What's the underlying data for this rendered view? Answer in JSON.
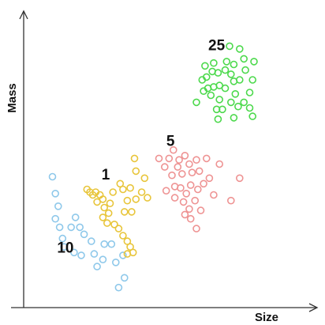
{
  "chart_data": {
    "type": "scatter",
    "title": "",
    "xlabel": "Size",
    "ylabel": "Mass",
    "xlim": [
      0,
      100
    ],
    "ylim": [
      0,
      100
    ],
    "grid": false,
    "legend": "none",
    "series": [
      {
        "label": "10",
        "color": "#8ec8ea",
        "points": [
          [
            10.0,
            45.5
          ],
          [
            11.0,
            39.5
          ],
          [
            12.0,
            35.0
          ],
          [
            11.0,
            30.5
          ],
          [
            12.5,
            27.5
          ],
          [
            13.5,
            23.5
          ],
          [
            14.0,
            20.5
          ],
          [
            16.5,
            27.5
          ],
          [
            18.0,
            31.0
          ],
          [
            19.5,
            27.5
          ],
          [
            21.0,
            25.0
          ],
          [
            17.5,
            18.5
          ],
          [
            20.0,
            17.5
          ],
          [
            23.5,
            22.5
          ],
          [
            24.5,
            18.0
          ],
          [
            25.5,
            13.5
          ],
          [
            27.5,
            16.0
          ],
          [
            28.0,
            21.5
          ],
          [
            30.5,
            21.5
          ],
          [
            32.0,
            15.0
          ],
          [
            34.5,
            17.5
          ],
          [
            35.0,
            9.5
          ],
          [
            33.0,
            6.0
          ]
        ]
      },
      {
        "label": "1",
        "color": "#e8c53a",
        "points": [
          [
            22.0,
            41.0
          ],
          [
            23.0,
            40.0
          ],
          [
            24.0,
            39.0
          ],
          [
            25.0,
            40.0
          ],
          [
            26.5,
            39.0
          ],
          [
            25.5,
            36.5
          ],
          [
            27.5,
            37.5
          ],
          [
            28.0,
            34.5
          ],
          [
            27.5,
            31.0
          ],
          [
            29.5,
            32.5
          ],
          [
            30.0,
            36.0
          ],
          [
            31.0,
            40.0
          ],
          [
            29.0,
            29.0
          ],
          [
            31.5,
            28.5
          ],
          [
            33.0,
            27.0
          ],
          [
            34.5,
            24.5
          ],
          [
            36.0,
            22.5
          ],
          [
            37.0,
            20.5
          ],
          [
            38.0,
            18.5
          ],
          [
            36.0,
            18.0
          ],
          [
            35.0,
            33.0
          ],
          [
            37.5,
            33.0
          ],
          [
            36.0,
            37.0
          ],
          [
            34.5,
            41.0
          ],
          [
            37.0,
            41.5
          ],
          [
            39.0,
            37.5
          ],
          [
            41.0,
            40.0
          ],
          [
            43.0,
            38.0
          ],
          [
            42.0,
            45.0
          ],
          [
            39.0,
            47.5
          ],
          [
            38.5,
            52.0
          ],
          [
            33.5,
            43.0
          ]
        ]
      },
      {
        "label": "5",
        "color": "#ee9393",
        "points": [
          [
            47.0,
            52.0
          ],
          [
            49.0,
            49.0
          ],
          [
            50.5,
            52.0
          ],
          [
            52.0,
            55.0
          ],
          [
            51.5,
            46.0
          ],
          [
            53.5,
            49.0
          ],
          [
            55.0,
            46.5
          ],
          [
            54.0,
            51.5
          ],
          [
            56.0,
            53.0
          ],
          [
            57.5,
            50.0
          ],
          [
            58.5,
            47.0
          ],
          [
            60.0,
            51.5
          ],
          [
            61.0,
            47.5
          ],
          [
            63.5,
            52.0
          ],
          [
            64.5,
            45.0
          ],
          [
            62.5,
            43.0
          ],
          [
            66.0,
            39.0
          ],
          [
            60.5,
            41.0
          ],
          [
            58.0,
            42.5
          ],
          [
            56.5,
            39.5
          ],
          [
            54.5,
            41.5
          ],
          [
            52.5,
            42.0
          ],
          [
            55.5,
            36.5
          ],
          [
            57.5,
            34.0
          ],
          [
            59.5,
            37.0
          ],
          [
            61.5,
            33.5
          ],
          [
            58.0,
            30.5
          ],
          [
            56.0,
            32.0
          ],
          [
            52.5,
            38.0
          ],
          [
            49.5,
            40.5
          ],
          [
            60.0,
            27.0
          ],
          [
            72.0,
            37.0
          ],
          [
            75.0,
            45.0
          ],
          [
            68.0,
            50.0
          ]
        ]
      },
      {
        "label": "25",
        "color": "#4cd94c",
        "points": [
          [
            60.0,
            72.0
          ],
          [
            62.5,
            76.0
          ],
          [
            64.0,
            77.0
          ],
          [
            66.0,
            77.5
          ],
          [
            68.0,
            78.0
          ],
          [
            70.0,
            77.0
          ],
          [
            62.0,
            80.0
          ],
          [
            63.5,
            81.0
          ],
          [
            65.5,
            83.0
          ],
          [
            67.5,
            82.5
          ],
          [
            70.0,
            83.5
          ],
          [
            72.0,
            82.0
          ],
          [
            73.0,
            79.5
          ],
          [
            75.0,
            80.0
          ],
          [
            73.5,
            75.0
          ],
          [
            72.0,
            72.0
          ],
          [
            69.0,
            69.5
          ],
          [
            67.0,
            69.5
          ],
          [
            68.0,
            73.0
          ],
          [
            65.0,
            74.5
          ],
          [
            63.0,
            85.0
          ],
          [
            66.0,
            86.0
          ],
          [
            70.5,
            86.5
          ],
          [
            73.0,
            85.5
          ],
          [
            77.0,
            83.5
          ],
          [
            79.5,
            80.0
          ],
          [
            78.5,
            75.5
          ],
          [
            76.5,
            72.0
          ],
          [
            74.5,
            70.5
          ],
          [
            78.5,
            70.0
          ],
          [
            79.5,
            67.0
          ],
          [
            73.0,
            66.5
          ],
          [
            67.5,
            66.0
          ],
          [
            76.5,
            87.5
          ],
          [
            75.0,
            91.0
          ],
          [
            71.5,
            92.0
          ],
          [
            80.0,
            86.5
          ]
        ]
      }
    ],
    "cluster_labels": [
      {
        "text": "10",
        "x": 14.5,
        "y": 18.5
      },
      {
        "text": "1",
        "x": 28.5,
        "y": 44.5
      },
      {
        "text": "5",
        "x": 51.0,
        "y": 56.5
      },
      {
        "text": "25",
        "x": 67.0,
        "y": 90.5
      }
    ]
  }
}
